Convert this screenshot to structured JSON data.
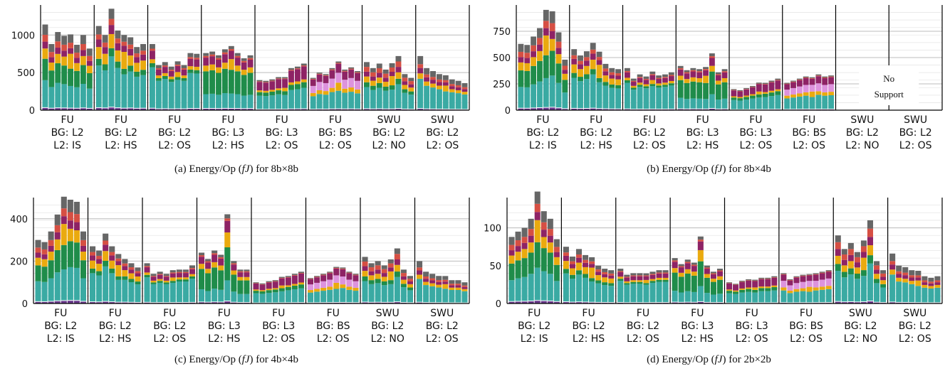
{
  "chart_data": [
    {
      "id": "a",
      "type": "bar",
      "stacked": true,
      "caption": "(a) Energy/Op (fJ) for 8b×8b",
      "caption_prefix": "(a) Energy/Op (",
      "caption_unit": "fJ",
      "caption_suffix": ") for 8b×8b",
      "ylim": [
        0,
        1400
      ],
      "yticks": [
        0,
        500,
        1000
      ],
      "groups": [
        {
          "label": "FU",
          "bg": "BG: L2",
          "l2": "L2: IS",
          "supported": true
        },
        {
          "label": "FU",
          "bg": "BG: L2",
          "l2": "L2: HS",
          "supported": true
        },
        {
          "label": "FU",
          "bg": "BG: L2",
          "l2": "L2: OS",
          "supported": true
        },
        {
          "label": "FU",
          "bg": "BG: L3",
          "l2": "L2: HS",
          "supported": true
        },
        {
          "label": "FU",
          "bg": "BG: L3",
          "l2": "L2: OS",
          "supported": true
        },
        {
          "label": "FU",
          "bg": "BG: BS",
          "l2": "L2: OS",
          "supported": true
        },
        {
          "label": "SWU",
          "bg": "BG: L2",
          "l2": "L2: NO",
          "supported": true
        },
        {
          "label": "SWU",
          "bg": "BG: L2",
          "l2": "L2: OS",
          "supported": true
        }
      ],
      "group_totals": [
        [
          1140,
          880,
          1040,
          990,
          920,
          870,
          1000,
          820
        ],
        [
          1120,
          1000,
          1350,
          1060,
          900,
          970,
          840,
          880
        ],
        [
          880,
          600,
          640,
          580,
          620,
          600,
          760,
          750
        ],
        [
          760,
          780,
          730,
          810,
          790,
          760,
          690,
          730
        ],
        [
          400,
          390,
          410,
          440,
          420,
          560,
          580,
          620
        ],
        [
          430,
          500,
          480,
          560,
          600,
          540,
          570,
          520
        ],
        [
          640,
          560,
          620,
          540,
          570,
          720,
          480,
          430
        ],
        [
          720,
          560,
          520,
          480,
          430,
          410,
          390,
          360
        ]
      ]
    },
    {
      "id": "b",
      "type": "bar",
      "stacked": true,
      "caption": "(b) Energy/Op (fJ) for 8b×4b",
      "caption_prefix": "(b) Energy/Op (",
      "caption_unit": "fJ",
      "caption_suffix": ") for 8b×4b",
      "ylim": [
        0,
        1000
      ],
      "yticks": [
        0,
        250,
        500,
        750
      ],
      "annotation": "No Support",
      "annotation_line1": "No",
      "annotation_line2": "Support",
      "groups": [
        {
          "label": "FU",
          "bg": "BG: L2",
          "l2": "L2: IS",
          "supported": true
        },
        {
          "label": "FU",
          "bg": "BG: L2",
          "l2": "L2: HS",
          "supported": true
        },
        {
          "label": "FU",
          "bg": "BG: L2",
          "l2": "L2: OS",
          "supported": true
        },
        {
          "label": "FU",
          "bg": "BG: L3",
          "l2": "L2: HS",
          "supported": true
        },
        {
          "label": "FU",
          "bg": "BG: L3",
          "l2": "L2: OS",
          "supported": true
        },
        {
          "label": "FU",
          "bg": "BG: BS",
          "l2": "L2: OS",
          "supported": true
        },
        {
          "label": "SWU",
          "bg": "BG: L2",
          "l2": "L2: NO",
          "supported": false
        },
        {
          "label": "SWU",
          "bg": "BG: L2",
          "l2": "L2: OS",
          "supported": false
        }
      ],
      "group_totals": [
        [
          630,
          620,
          700,
          780,
          870,
          940,
          740,
          480
        ],
        [
          580,
          520,
          560,
          640,
          500,
          440,
          400,
          390
        ],
        [
          400,
          300,
          340,
          320,
          350,
          330,
          340,
          360
        ],
        [
          420,
          380,
          400,
          390,
          380,
          540,
          360,
          390
        ],
        [
          200,
          190,
          210,
          230,
          250,
          260,
          280,
          300
        ],
        [
          260,
          280,
          300,
          320,
          290,
          340,
          320,
          330
        ]
      ]
    },
    {
      "id": "c",
      "type": "bar",
      "stacked": true,
      "caption": "(c) Energy/Op (fJ) for 4b×4b",
      "caption_prefix": "(c) Energy/Op (",
      "caption_unit": "fJ",
      "caption_suffix": ") for 4b×4b",
      "ylim": [
        0,
        500
      ],
      "yticks": [
        0,
        200,
        400
      ],
      "groups": [
        {
          "label": "FU",
          "bg": "BG: L2",
          "l2": "L2: IS",
          "supported": true
        },
        {
          "label": "FU",
          "bg": "BG: L2",
          "l2": "L2: HS",
          "supported": true
        },
        {
          "label": "FU",
          "bg": "BG: L2",
          "l2": "L2: OS",
          "supported": true
        },
        {
          "label": "FU",
          "bg": "BG: L3",
          "l2": "L2: HS",
          "supported": true
        },
        {
          "label": "FU",
          "bg": "BG: L3",
          "l2": "L2: OS",
          "supported": true
        },
        {
          "label": "FU",
          "bg": "BG: BS",
          "l2": "L2: OS",
          "supported": true
        },
        {
          "label": "SWU",
          "bg": "BG: L2",
          "l2": "L2: NO",
          "supported": true
        },
        {
          "label": "SWU",
          "bg": "BG: L2",
          "l2": "L2: OS",
          "supported": true
        }
      ],
      "group_totals": [
        [
          300,
          290,
          340,
          420,
          460,
          490,
          480,
          340
        ],
        [
          270,
          250,
          330,
          270,
          210,
          210,
          190,
          170
        ],
        [
          190,
          140,
          150,
          140,
          150,
          160,
          160,
          180
        ],
        [
          240,
          210,
          250,
          230,
          390,
          200,
          160,
          160
        ],
        [
          100,
          95,
          105,
          110,
          120,
          130,
          140,
          150
        ],
        [
          120,
          130,
          140,
          150,
          160,
          170,
          150,
          140
        ],
        [
          220,
          190,
          200,
          180,
          190,
          260,
          160,
          130
        ],
        [
          200,
          150,
          140,
          130,
          120,
          110,
          110,
          100
        ]
      ]
    },
    {
      "id": "d",
      "type": "bar",
      "stacked": true,
      "caption": "(d) Energy/Op (fJ) for 2b×2b",
      "caption_prefix": "(d) Energy/Op (",
      "caption_unit": "fJ",
      "caption_suffix": ") for 2b×2b",
      "ylim": [
        0,
        140
      ],
      "yticks": [
        0,
        50,
        100
      ],
      "groups": [
        {
          "label": "FU",
          "bg": "BG: L2",
          "l2": "L2: IS",
          "supported": true
        },
        {
          "label": "FU",
          "bg": "BG: L2",
          "l2": "L2: HS",
          "supported": true
        },
        {
          "label": "FU",
          "bg": "BG: L2",
          "l2": "L2: OS",
          "supported": true
        },
        {
          "label": "FU",
          "bg": "BG: L3",
          "l2": "L2: HS",
          "supported": true
        },
        {
          "label": "FU",
          "bg": "BG: L3",
          "l2": "L2: OS",
          "supported": true
        },
        {
          "label": "FU",
          "bg": "BG: BS",
          "l2": "L2: OS",
          "supported": true
        },
        {
          "label": "SWU",
          "bg": "BG: L2",
          "l2": "L2: NO",
          "supported": true
        },
        {
          "label": "SWU",
          "bg": "BG: L2",
          "l2": "L2: OS",
          "supported": true
        }
      ],
      "group_totals": [
        [
          88,
          95,
          100,
          112,
          135,
          122,
          112,
          85
        ],
        [
          75,
          62,
          72,
          64,
          55,
          50,
          46,
          44
        ],
        [
          46,
          38,
          40,
          40,
          38,
          42,
          44,
          44
        ],
        [
          60,
          52,
          58,
          54,
          82,
          50,
          42,
          46
        ],
        [
          28,
          26,
          30,
          32,
          30,
          34,
          34,
          36
        ],
        [
          40,
          32,
          36,
          38,
          36,
          40,
          42,
          44
        ],
        [
          90,
          72,
          80,
          68,
          76,
          110,
          56,
          44
        ],
        [
          66,
          50,
          48,
          44,
          40,
          36,
          34,
          36
        ]
      ]
    }
  ],
  "colors": {
    "dark_gray": "#666666",
    "red": "#d64f43",
    "orange": "#eaaa0f",
    "magenta": "#8e2365",
    "pink": "#dd93dd",
    "dark_green": "#1f8c4a",
    "teal": "#3aaaa3",
    "purple": "#6a3a8c",
    "axis": "#000000",
    "grid": "#cccccc"
  }
}
